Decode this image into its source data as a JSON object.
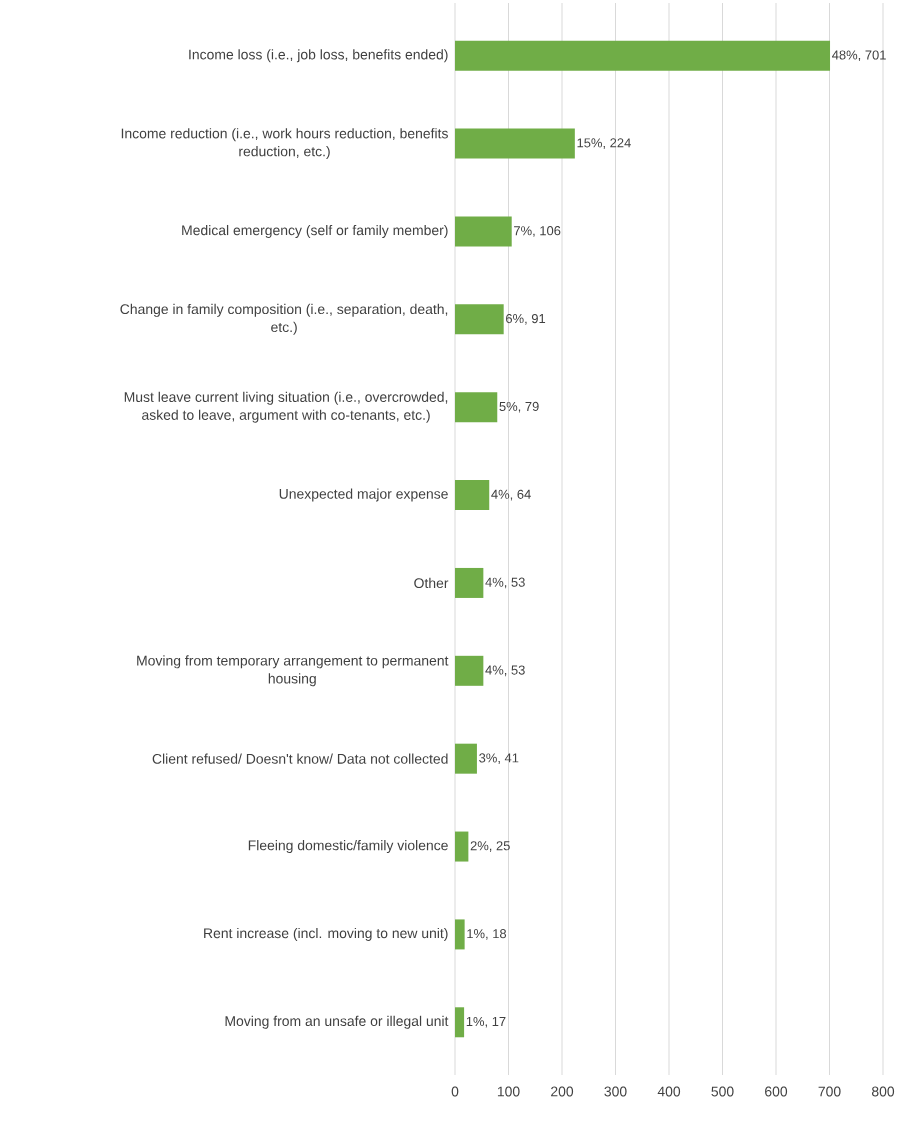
{
  "chart_data": {
    "type": "bar",
    "orientation": "horizontal",
    "color": "#70ad47",
    "categories": [
      "Income loss (i.e., job loss, benefits ended)",
      "Income reduction (i.e., work hours reduction, benefits reduction, etc.)",
      "Medical emergency (self or family member)",
      "Change in family composition (i.e., separation, death, etc.)",
      "Must leave current living situation (i.e., overcrowded, asked to leave, argument with co-tenants, etc.)",
      "Unexpected major expense",
      "Other",
      "Moving from temporary arrangement to permanent housing",
      "Client refused/ Doesn't know/ Data not collected",
      "Fleeing domestic/family violence",
      "Rent increase (incl. moving to new unit)",
      "Moving from an unsafe or illegal unit"
    ],
    "values": [
      701,
      224,
      106,
      91,
      79,
      64,
      53,
      53,
      41,
      25,
      18,
      17
    ],
    "value_labels": [
      "48%, 701",
      "15%, 224",
      "7%, 106",
      "6%, 91",
      "5%, 79",
      "4%, 64",
      "4%, 53",
      "4%, 53",
      "3%, 41",
      "2%, 25",
      "1%, 18",
      "1%, 17"
    ],
    "xlim": [
      0,
      800
    ],
    "xticks": [
      0,
      100,
      200,
      300,
      400,
      500,
      600,
      700,
      800
    ],
    "grid": "x"
  }
}
